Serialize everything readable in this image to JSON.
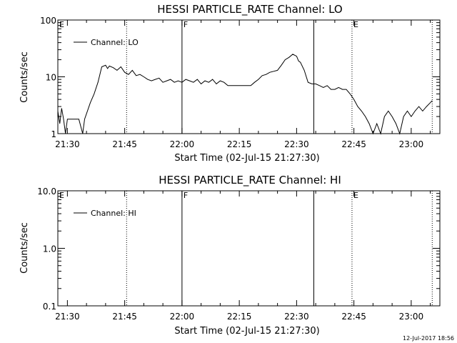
{
  "footer_timestamp": "12-Jul-2017 18:56",
  "chart_data": [
    {
      "type": "line",
      "title": "HESSI PARTICLE_RATE Channel: LO",
      "xlabel": "Start Time (02-Jul-15 21:27:30)",
      "ylabel": "Counts/sec",
      "y_scale": "log",
      "ylim": [
        1,
        100
      ],
      "y_ticks": [
        1,
        10,
        100
      ],
      "y_tick_labels": [
        "1",
        "10",
        "100"
      ],
      "xlim": [
        "21:27:30",
        "23:07:30"
      ],
      "x_ticks": [
        "21:30",
        "21:45",
        "22:00",
        "22:15",
        "22:30",
        "22:45",
        "23:00"
      ],
      "legend": {
        "position": "top-left",
        "entries": [
          "Channel: LO"
        ]
      },
      "grid": false,
      "markers": [
        {
          "time": "21:27:30",
          "label": "E",
          "style": "dotted"
        },
        {
          "time": "21:45:30",
          "label": "",
          "style": "dotted"
        },
        {
          "time": "22:00:00",
          "label": "F",
          "style": "solid"
        },
        {
          "time": "22:34:30",
          "label": "",
          "style": "solid"
        },
        {
          "time": "22:44:30",
          "label": "E",
          "style": "dotted"
        },
        {
          "time": "23:05:30",
          "label": "",
          "style": "dotted"
        }
      ],
      "series": [
        {
          "name": "Channel: LO",
          "x": [
            "21:27:30",
            "21:28:00",
            "21:28:30",
            "21:29:00",
            "21:29:30",
            "21:30:00",
            "21:33:00",
            "21:34:00",
            "21:34:30",
            "21:36:00",
            "21:37:00",
            "21:38:00",
            "21:39:00",
            "21:40:00",
            "21:40:30",
            "21:41:00",
            "21:42:00",
            "21:43:00",
            "21:44:00",
            "21:45:00",
            "21:46:00",
            "21:47:00",
            "21:48:00",
            "21:49:00",
            "21:50:00",
            "21:51:00",
            "21:52:00",
            "21:53:00",
            "21:54:00",
            "21:55:00",
            "21:56:00",
            "21:57:00",
            "21:58:00",
            "21:59:00",
            "22:00:00",
            "22:01:00",
            "22:02:00",
            "22:03:00",
            "22:04:00",
            "22:05:00",
            "22:06:00",
            "22:07:00",
            "22:08:00",
            "22:09:00",
            "22:10:00",
            "22:11:00",
            "22:12:00",
            "22:13:00",
            "22:14:00",
            "22:15:00",
            "22:16:00",
            "22:17:00",
            "22:18:00",
            "22:19:00",
            "22:20:00",
            "22:21:00",
            "22:22:00",
            "22:23:00",
            "22:24:00",
            "22:25:00",
            "22:26:00",
            "22:27:00",
            "22:28:00",
            "22:29:00",
            "22:30:00",
            "22:30:30",
            "22:31:00",
            "22:32:00",
            "22:33:00",
            "22:34:00",
            "22:35:00",
            "22:36:00",
            "22:37:00",
            "22:38:00",
            "22:39:00",
            "22:40:00",
            "22:41:00",
            "22:42:00",
            "22:43:00",
            "22:44:00",
            "22:45:00",
            "22:46:00",
            "22:47:00",
            "22:48:00",
            "22:49:00",
            "22:50:00",
            "22:51:00",
            "22:52:00",
            "22:53:00",
            "22:54:00",
            "22:55:00",
            "22:56:00",
            "22:57:00",
            "22:58:00",
            "22:59:00",
            "23:00:00",
            "23:01:00",
            "23:02:00",
            "23:03:00",
            "23:04:00",
            "23:05:00",
            "23:05:30"
          ],
          "values": [
            2.5,
            1.5,
            2.8,
            1.8,
            1.0,
            1.8,
            1.8,
            1.0,
            1.8,
            3.5,
            5.0,
            8.0,
            15.0,
            16.0,
            14.0,
            15.5,
            14.5,
            13.0,
            15.0,
            12.0,
            11.0,
            13.0,
            10.5,
            11.0,
            10.0,
            9.0,
            8.5,
            9.0,
            9.5,
            8.0,
            8.5,
            9.0,
            8.0,
            8.5,
            8.0,
            9.0,
            8.5,
            8.0,
            9.0,
            7.5,
            8.5,
            8.0,
            9.0,
            7.5,
            8.5,
            8.0,
            7.0,
            7.0,
            7.0,
            7.0,
            7.0,
            7.0,
            7.0,
            8.0,
            9.0,
            10.5,
            11.0,
            12.0,
            12.5,
            13.0,
            16.0,
            20.0,
            22.0,
            25.0,
            23.0,
            19.0,
            18.0,
            13.0,
            8.0,
            7.5,
            7.5,
            7.0,
            6.5,
            7.0,
            6.0,
            6.0,
            6.5,
            6.0,
            6.0,
            5.0,
            4.0,
            3.0,
            2.5,
            2.0,
            1.5,
            1.0,
            1.5,
            1.0,
            2.0,
            2.5,
            2.0,
            1.5,
            1.0,
            2.0,
            2.5,
            2.0,
            2.5,
            3.0,
            2.5,
            3.0,
            3.5,
            3.8
          ]
        }
      ]
    },
    {
      "type": "line",
      "title": "HESSI PARTICLE_RATE Channel: HI",
      "xlabel": "Start Time (02-Jul-15 21:27:30)",
      "ylabel": "Counts/sec",
      "y_scale": "log",
      "ylim": [
        0.1,
        10.0
      ],
      "y_ticks": [
        0.1,
        1.0,
        10.0
      ],
      "y_tick_labels": [
        "0.1",
        "1.0",
        "10.0"
      ],
      "xlim": [
        "21:27:30",
        "23:07:30"
      ],
      "x_ticks": [
        "21:30",
        "21:45",
        "22:00",
        "22:15",
        "22:30",
        "22:45",
        "23:00"
      ],
      "legend": {
        "position": "top-left",
        "entries": [
          "Channel: HI"
        ]
      },
      "grid": false,
      "markers": [
        {
          "time": "21:27:30",
          "label": "E",
          "style": "dotted"
        },
        {
          "time": "21:45:30",
          "label": "",
          "style": "dotted"
        },
        {
          "time": "22:00:00",
          "label": "F",
          "style": "solid"
        },
        {
          "time": "22:34:30",
          "label": "",
          "style": "solid"
        },
        {
          "time": "22:44:30",
          "label": "E",
          "style": "dotted"
        },
        {
          "time": "23:05:30",
          "label": "",
          "style": "dotted"
        }
      ],
      "series": [
        {
          "name": "Channel: HI",
          "x": [],
          "values": []
        }
      ]
    }
  ]
}
